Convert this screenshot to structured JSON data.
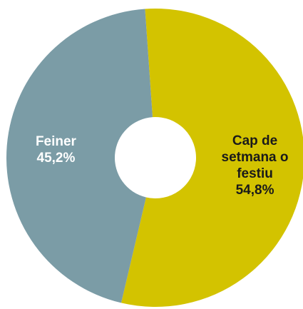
{
  "chart_data": {
    "type": "donut",
    "categories": [
      "Cap de setmana o festiu",
      "Feiner"
    ],
    "values": [
      54.8,
      45.2
    ],
    "value_labels": [
      "54,8%",
      "45,2%"
    ],
    "colors": [
      "#d3c300",
      "#7b9ca6"
    ],
    "label_colors": [
      "#1a1a1a",
      "#ffffff"
    ]
  }
}
